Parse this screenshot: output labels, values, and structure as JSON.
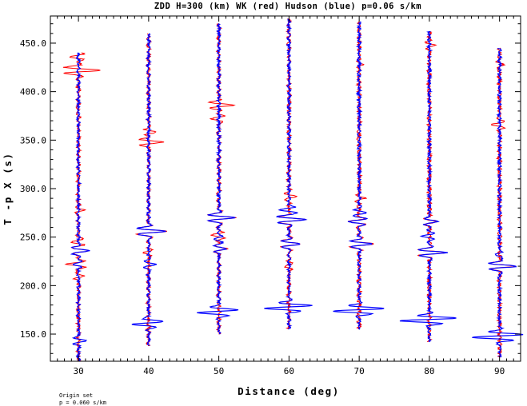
{
  "chart_data": {
    "type": "line",
    "title": "ZDD H=300 (km) WK (red) Hudson (blue) p=0.06 s/km",
    "xlabel": "Distance (deg)",
    "ylabel": "T -p X (s)",
    "xlim": [
      26,
      93
    ],
    "ylim": [
      122,
      478
    ],
    "xticks": [
      30,
      40,
      50,
      60,
      70,
      80,
      90
    ],
    "xtick_labels": [
      "30",
      "40",
      "50",
      "60",
      "70",
      "80",
      "90"
    ],
    "yticks": [
      150,
      200,
      250,
      300,
      350,
      400,
      450
    ],
    "ytick_labels": [
      "150.0",
      "200.0",
      "250.0",
      "300.0",
      "350.0",
      "400.0",
      "450.0"
    ],
    "grid": false,
    "footnote": [
      "Origin set",
      "p = 0.060 s/km"
    ],
    "series": [
      {
        "name": "WK",
        "color": "#ff0000"
      },
      {
        "name": "Hudson",
        "color": "#0000ff"
      }
    ],
    "traces": [
      {
        "distance": 30,
        "t_start": 122,
        "t_end": 440,
        "blue_arrivals": [
          {
            "t": 143,
            "amp": 1.2
          },
          {
            "t": 236,
            "amp": 1.4
          },
          {
            "t": 222,
            "amp": -0.8
          }
        ],
        "red_arrivals": [
          {
            "t": 422,
            "amp": 3.2
          },
          {
            "t": 436,
            "amp": -1.4
          },
          {
            "t": 236,
            "amp": 1.4
          },
          {
            "t": 222,
            "amp": -1.6
          },
          {
            "t": 210,
            "amp": 1.0
          },
          {
            "t": 245,
            "amp": -0.9
          },
          {
            "t": 278,
            "amp": 0.8
          }
        ]
      },
      {
        "distance": 40,
        "t_start": 138,
        "t_end": 460,
        "blue_arrivals": [
          {
            "t": 160,
            "amp": -1.6
          },
          {
            "t": 163,
            "amp": 1.2
          },
          {
            "t": 256,
            "amp": 2.4
          },
          {
            "t": 222,
            "amp": 0.9
          }
        ],
        "red_arrivals": [
          {
            "t": 348,
            "amp": 2.0
          },
          {
            "t": 358,
            "amp": 1.2
          },
          {
            "t": 256,
            "amp": 2.4
          },
          {
            "t": 234,
            "amp": -0.8
          }
        ]
      },
      {
        "distance": 50,
        "t_start": 150,
        "t_end": 470,
        "blue_arrivals": [
          {
            "t": 172,
            "amp": -2.2
          },
          {
            "t": 175,
            "amp": 1.4
          },
          {
            "t": 270,
            "amp": 2.2
          },
          {
            "t": 238,
            "amp": 1.1
          },
          {
            "t": 248,
            "amp": -0.8
          }
        ],
        "red_arrivals": [
          {
            "t": 386,
            "amp": 2.2
          },
          {
            "t": 372,
            "amp": -1.0
          },
          {
            "t": 270,
            "amp": 2.2
          },
          {
            "t": 238,
            "amp": 1.2
          },
          {
            "t": 252,
            "amp": -1.0
          }
        ]
      },
      {
        "distance": 60,
        "t_start": 155,
        "t_end": 475,
        "blue_arrivals": [
          {
            "t": 177,
            "amp": -2.6
          },
          {
            "t": 179,
            "amp": 2.2
          },
          {
            "t": 268,
            "amp": 2.4
          },
          {
            "t": 278,
            "amp": -1.4
          },
          {
            "t": 243,
            "amp": 1.6
          }
        ],
        "red_arrivals": [
          {
            "t": 292,
            "amp": 0.9
          },
          {
            "t": 268,
            "amp": 2.4
          },
          {
            "t": 220,
            "amp": -0.7
          },
          {
            "t": 243,
            "amp": 1.6
          }
        ]
      },
      {
        "distance": 70,
        "t_start": 155,
        "t_end": 472,
        "blue_arrivals": [
          {
            "t": 174,
            "amp": -2.8
          },
          {
            "t": 176,
            "amp": 2.4
          },
          {
            "t": 243,
            "amp": 2.0
          },
          {
            "t": 266,
            "amp": -1.4
          },
          {
            "t": 275,
            "amp": 1.0
          }
        ],
        "red_arrivals": [
          {
            "t": 243,
            "amp": 2.0
          },
          {
            "t": 266,
            "amp": -1.4
          },
          {
            "t": 290,
            "amp": 0.8
          },
          {
            "t": 428,
            "amp": 0.7
          }
        ]
      },
      {
        "distance": 80,
        "t_start": 142,
        "t_end": 462,
        "blue_arrivals": [
          {
            "t": 164,
            "amp": -3.2
          },
          {
            "t": 166,
            "amp": 2.6
          },
          {
            "t": 234,
            "amp": 2.4
          },
          {
            "t": 266,
            "amp": 1.2
          },
          {
            "t": 251,
            "amp": -1.0
          }
        ],
        "red_arrivals": [
          {
            "t": 448,
            "amp": 0.8
          },
          {
            "t": 234,
            "amp": 2.4
          },
          {
            "t": 266,
            "amp": 1.0
          }
        ]
      },
      {
        "distance": 90,
        "t_start": 126,
        "t_end": 445,
        "blue_arrivals": [
          {
            "t": 147,
            "amp": -3.0
          },
          {
            "t": 149,
            "amp": 2.0
          },
          {
            "t": 220,
            "amp": 2.4
          },
          {
            "t": 232,
            "amp": -0.8
          }
        ],
        "red_arrivals": [
          {
            "t": 366,
            "amp": -0.9
          },
          {
            "t": 428,
            "amp": 0.6
          },
          {
            "t": 220,
            "amp": 2.4
          }
        ]
      }
    ]
  }
}
